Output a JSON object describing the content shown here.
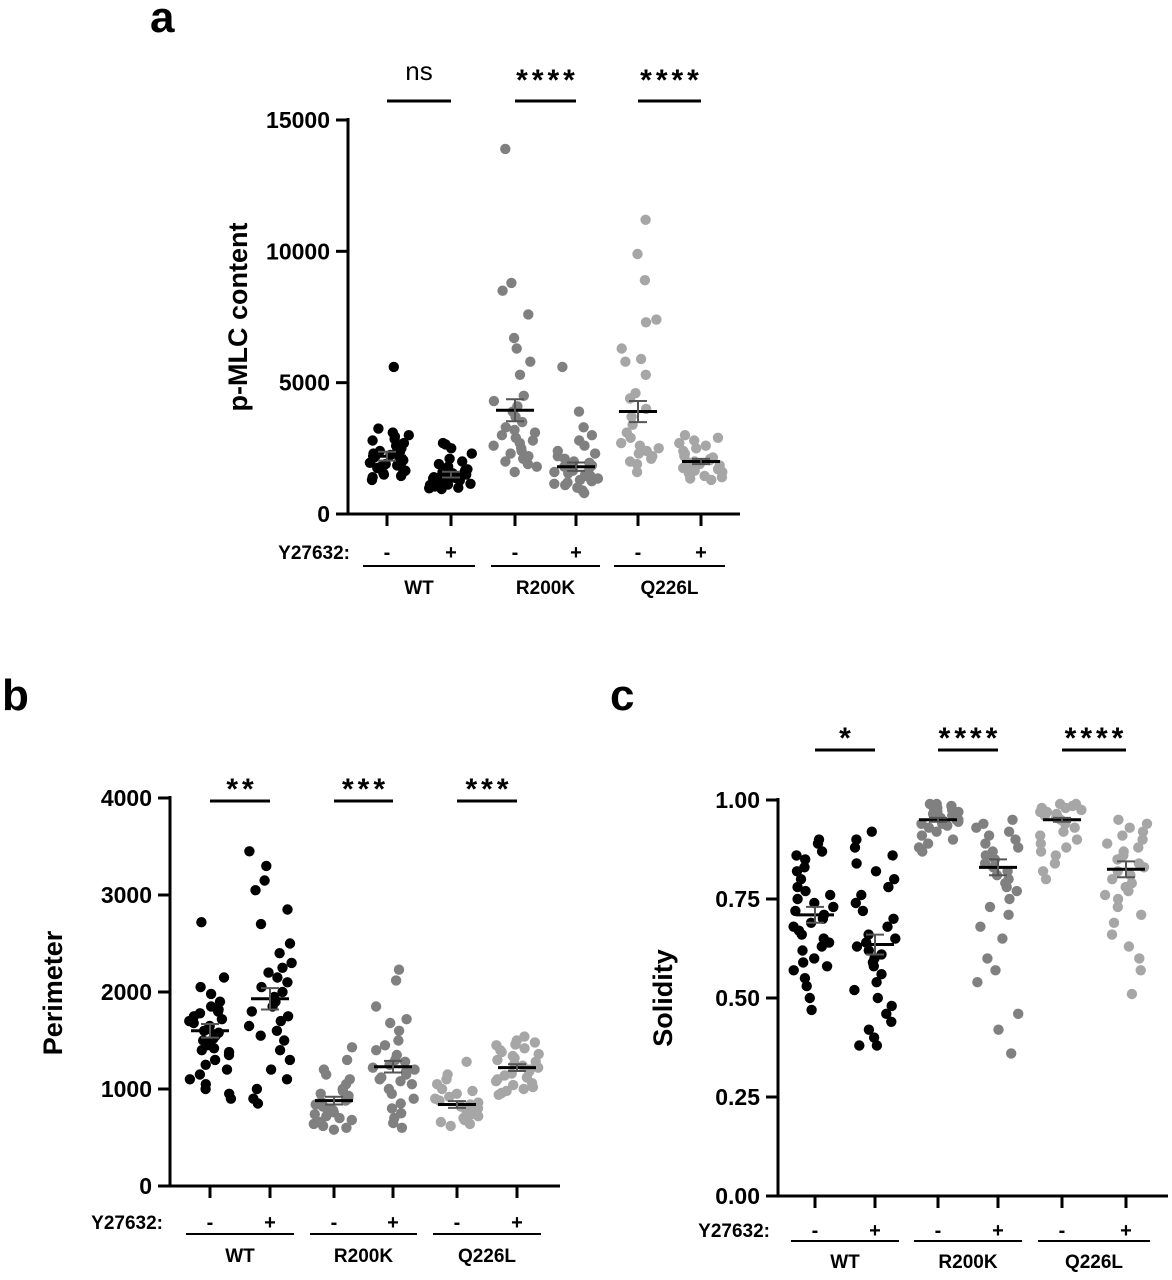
{
  "chart_data": [
    {
      "panel": "a",
      "type": "scatter",
      "ylabel": "p-MLC content",
      "ylim": [
        0,
        15000
      ],
      "yticks": [
        0,
        5000,
        10000,
        15000
      ],
      "treatment_label": "Y27632:",
      "groups": [
        {
          "name": "WT",
          "color": "#000000",
          "conditions": [
            {
              "treat": "-",
              "mean": 2200,
              "sem": 170,
              "values": [
                5600,
                3250,
                3100,
                3000,
                2950,
                2850,
                2800,
                2700,
                2600,
                2500,
                2450,
                2400,
                2350,
                2300,
                2250,
                2200,
                2150,
                2100,
                2050,
                2000,
                1950,
                1900,
                1850,
                1800,
                1750,
                1700,
                1650,
                1600,
                1550,
                1500,
                1450,
                1400,
                1300
              ]
            },
            {
              "treat": "+",
              "mean": 1500,
              "sem": 110,
              "values": [
                2700,
                2650,
                2500,
                2300,
                2100,
                2000,
                1900,
                1800,
                1700,
                1650,
                1600,
                1550,
                1500,
                1450,
                1400,
                1380,
                1350,
                1320,
                1300,
                1280,
                1250,
                1230,
                1200,
                1180,
                1150,
                1120,
                1100,
                1080,
                1050,
                1000,
                980,
                950
              ]
            }
          ]
        },
        {
          "name": "R200K",
          "color": "#808080",
          "conditions": [
            {
              "treat": "-",
              "mean": 3950,
              "sem": 420,
              "values": [
                13900,
                8800,
                8500,
                7600,
                6700,
                6300,
                5800,
                5300,
                4500,
                4300,
                4100,
                3900,
                3700,
                3500,
                3300,
                3200,
                3100,
                3000,
                2900,
                2800,
                2700,
                2600,
                2500,
                2400,
                2300,
                2200,
                2100,
                2000,
                1900,
                1800,
                1600
              ]
            },
            {
              "treat": "+",
              "mean": 1800,
              "sem": 160,
              "values": [
                5600,
                3900,
                3300,
                3000,
                2800,
                2600,
                2400,
                2300,
                2200,
                2100,
                2000,
                1950,
                1900,
                1850,
                1800,
                1750,
                1700,
                1650,
                1600,
                1550,
                1500,
                1450,
                1400,
                1350,
                1300,
                1250,
                1200,
                1150,
                1100,
                1000,
                900,
                800
              ]
            }
          ]
        },
        {
          "name": "Q226L",
          "color": "#a6a6a6",
          "conditions": [
            {
              "treat": "-",
              "mean": 3900,
              "sem": 400,
              "values": [
                11200,
                9900,
                8900,
                7400,
                7300,
                6300,
                5900,
                5800,
                5300,
                4600,
                4400,
                4000,
                3700,
                3400,
                3100,
                2900,
                2700,
                2600,
                2500,
                2400,
                2300,
                2200,
                2100,
                2000,
                1900,
                1600
              ]
            },
            {
              "treat": "+",
              "mean": 2000,
              "sem": 100,
              "values": [
                3000,
                2900,
                2800,
                2700,
                2600,
                2500,
                2400,
                2300,
                2250,
                2200,
                2150,
                2100,
                2050,
                2000,
                1950,
                1900,
                1850,
                1800,
                1750,
                1700,
                1650,
                1600,
                1550,
                1500,
                1450,
                1400,
                1350,
                1300
              ]
            }
          ]
        }
      ],
      "significance": [
        {
          "group": "WT",
          "label": "ns"
        },
        {
          "group": "R200K",
          "label": "****"
        },
        {
          "group": "Q226L",
          "label": "****"
        }
      ]
    },
    {
      "panel": "b",
      "type": "scatter",
      "ylabel": "Perimeter",
      "ylim": [
        0,
        4000
      ],
      "yticks": [
        0,
        1000,
        2000,
        3000,
        4000
      ],
      "treatment_label": "Y27632:",
      "groups": [
        {
          "name": "WT",
          "color": "#000000",
          "conditions": [
            {
              "treat": "-",
              "mean": 1600,
              "sem": 70,
              "values": [
                2720,
                2150,
                2050,
                1980,
                1900,
                1850,
                1820,
                1800,
                1780,
                1750,
                1720,
                1700,
                1680,
                1650,
                1620,
                1600,
                1580,
                1550,
                1520,
                1500,
                1480,
                1450,
                1420,
                1400,
                1380,
                1350,
                1300,
                1250,
                1200,
                1150,
                1100,
                1050,
                1000,
                950,
                900
              ]
            },
            {
              "treat": "+",
              "mean": 1930,
              "sem": 110,
              "values": [
                3450,
                3300,
                3150,
                3050,
                2850,
                2700,
                2500,
                2400,
                2300,
                2250,
                2200,
                2150,
                2100,
                2050,
                2000,
                1950,
                1900,
                1850,
                1800,
                1750,
                1700,
                1650,
                1600,
                1550,
                1500,
                1400,
                1300,
                1200,
                1100,
                1000,
                900,
                850
              ]
            }
          ]
        },
        {
          "name": "R200K",
          "color": "#808080",
          "conditions": [
            {
              "treat": "-",
              "mean": 880,
              "sem": 40,
              "values": [
                1430,
                1300,
                1200,
                1150,
                1100,
                1050,
                1000,
                980,
                950,
                930,
                900,
                880,
                860,
                850,
                840,
                820,
                800,
                780,
                760,
                740,
                720,
                700,
                680,
                660,
                640,
                620,
                600,
                580
              ]
            },
            {
              "treat": "+",
              "mean": 1230,
              "sem": 60,
              "values": [
                2230,
                2120,
                1850,
                1720,
                1680,
                1600,
                1500,
                1450,
                1400,
                1350,
                1300,
                1280,
                1250,
                1220,
                1200,
                1180,
                1150,
                1120,
                1100,
                1080,
                1050,
                1000,
                950,
                900,
                850,
                800,
                750,
                700,
                650,
                600
              ]
            }
          ]
        },
        {
          "name": "Q226L",
          "color": "#a6a6a6",
          "conditions": [
            {
              "treat": "-",
              "mean": 840,
              "sem": 35,
              "values": [
                1280,
                1150,
                1100,
                1050,
                1000,
                980,
                950,
                920,
                900,
                880,
                860,
                840,
                820,
                800,
                780,
                760,
                740,
                720,
                700,
                680,
                660,
                640,
                620
              ]
            },
            {
              "treat": "+",
              "mean": 1220,
              "sem": 35,
              "values": [
                1540,
                1500,
                1480,
                1460,
                1450,
                1420,
                1400,
                1380,
                1360,
                1340,
                1320,
                1300,
                1280,
                1260,
                1240,
                1220,
                1200,
                1180,
                1160,
                1140,
                1120,
                1100,
                1080,
                1060,
                1040,
                1020,
                1000,
                980,
                960,
                940
              ]
            }
          ]
        }
      ],
      "significance": [
        {
          "group": "WT",
          "label": "**"
        },
        {
          "group": "R200K",
          "label": "***"
        },
        {
          "group": "Q226L",
          "label": "***"
        }
      ]
    },
    {
      "panel": "c",
      "type": "scatter",
      "ylabel": "Solidity",
      "ylim": [
        0,
        1
      ],
      "yticks": [
        0.0,
        0.25,
        0.5,
        0.75,
        1.0
      ],
      "ytick_labels": [
        "0.00",
        "0.25",
        "0.50",
        "0.75",
        "1.00"
      ],
      "treatment_label": "Y27632:",
      "groups": [
        {
          "name": "WT",
          "color": "#000000",
          "conditions": [
            {
              "treat": "-",
              "mean": 0.71,
              "sem": 0.02,
              "values": [
                0.9,
                0.89,
                0.87,
                0.86,
                0.85,
                0.83,
                0.82,
                0.8,
                0.78,
                0.77,
                0.76,
                0.75,
                0.74,
                0.73,
                0.72,
                0.71,
                0.7,
                0.69,
                0.68,
                0.67,
                0.66,
                0.65,
                0.64,
                0.63,
                0.62,
                0.6,
                0.59,
                0.58,
                0.57,
                0.55,
                0.53,
                0.5,
                0.47
              ]
            },
            {
              "treat": "+",
              "mean": 0.635,
              "sem": 0.025,
              "values": [
                0.92,
                0.9,
                0.88,
                0.86,
                0.84,
                0.82,
                0.8,
                0.78,
                0.76,
                0.74,
                0.72,
                0.7,
                0.68,
                0.66,
                0.65,
                0.64,
                0.63,
                0.62,
                0.61,
                0.6,
                0.59,
                0.58,
                0.56,
                0.54,
                0.52,
                0.5,
                0.48,
                0.46,
                0.44,
                0.42,
                0.4,
                0.38,
                0.38
              ]
            }
          ]
        },
        {
          "name": "R200K",
          "color": "#808080",
          "conditions": [
            {
              "treat": "-",
              "mean": 0.95,
              "sem": 0.005,
              "values": [
                0.99,
                0.99,
                0.985,
                0.98,
                0.98,
                0.975,
                0.97,
                0.97,
                0.965,
                0.96,
                0.96,
                0.955,
                0.95,
                0.95,
                0.945,
                0.94,
                0.94,
                0.935,
                0.93,
                0.92,
                0.91,
                0.9,
                0.89,
                0.88,
                0.87
              ]
            },
            {
              "treat": "+",
              "mean": 0.83,
              "sem": 0.02,
              "values": [
                0.95,
                0.94,
                0.93,
                0.92,
                0.91,
                0.9,
                0.89,
                0.88,
                0.87,
                0.86,
                0.85,
                0.84,
                0.83,
                0.82,
                0.81,
                0.8,
                0.79,
                0.78,
                0.77,
                0.75,
                0.73,
                0.71,
                0.68,
                0.65,
                0.6,
                0.57,
                0.54,
                0.46,
                0.42,
                0.36
              ]
            }
          ]
        },
        {
          "name": "Q226L",
          "color": "#a6a6a6",
          "conditions": [
            {
              "treat": "-",
              "mean": 0.95,
              "sem": 0.005,
              "values": [
                0.99,
                0.99,
                0.985,
                0.98,
                0.98,
                0.975,
                0.97,
                0.97,
                0.965,
                0.96,
                0.96,
                0.955,
                0.95,
                0.94,
                0.93,
                0.92,
                0.91,
                0.9,
                0.89,
                0.88,
                0.87,
                0.86,
                0.84,
                0.82,
                0.8
              ]
            },
            {
              "treat": "+",
              "mean": 0.825,
              "sem": 0.02,
              "values": [
                0.95,
                0.94,
                0.93,
                0.92,
                0.91,
                0.9,
                0.89,
                0.88,
                0.87,
                0.86,
                0.85,
                0.84,
                0.83,
                0.82,
                0.81,
                0.8,
                0.79,
                0.78,
                0.77,
                0.76,
                0.75,
                0.73,
                0.71,
                0.69,
                0.66,
                0.63,
                0.6,
                0.57,
                0.51
              ]
            }
          ]
        }
      ],
      "significance": [
        {
          "group": "WT",
          "label": "*"
        },
        {
          "group": "R200K",
          "label": "****"
        },
        {
          "group": "Q226L",
          "label": "****"
        }
      ]
    }
  ]
}
